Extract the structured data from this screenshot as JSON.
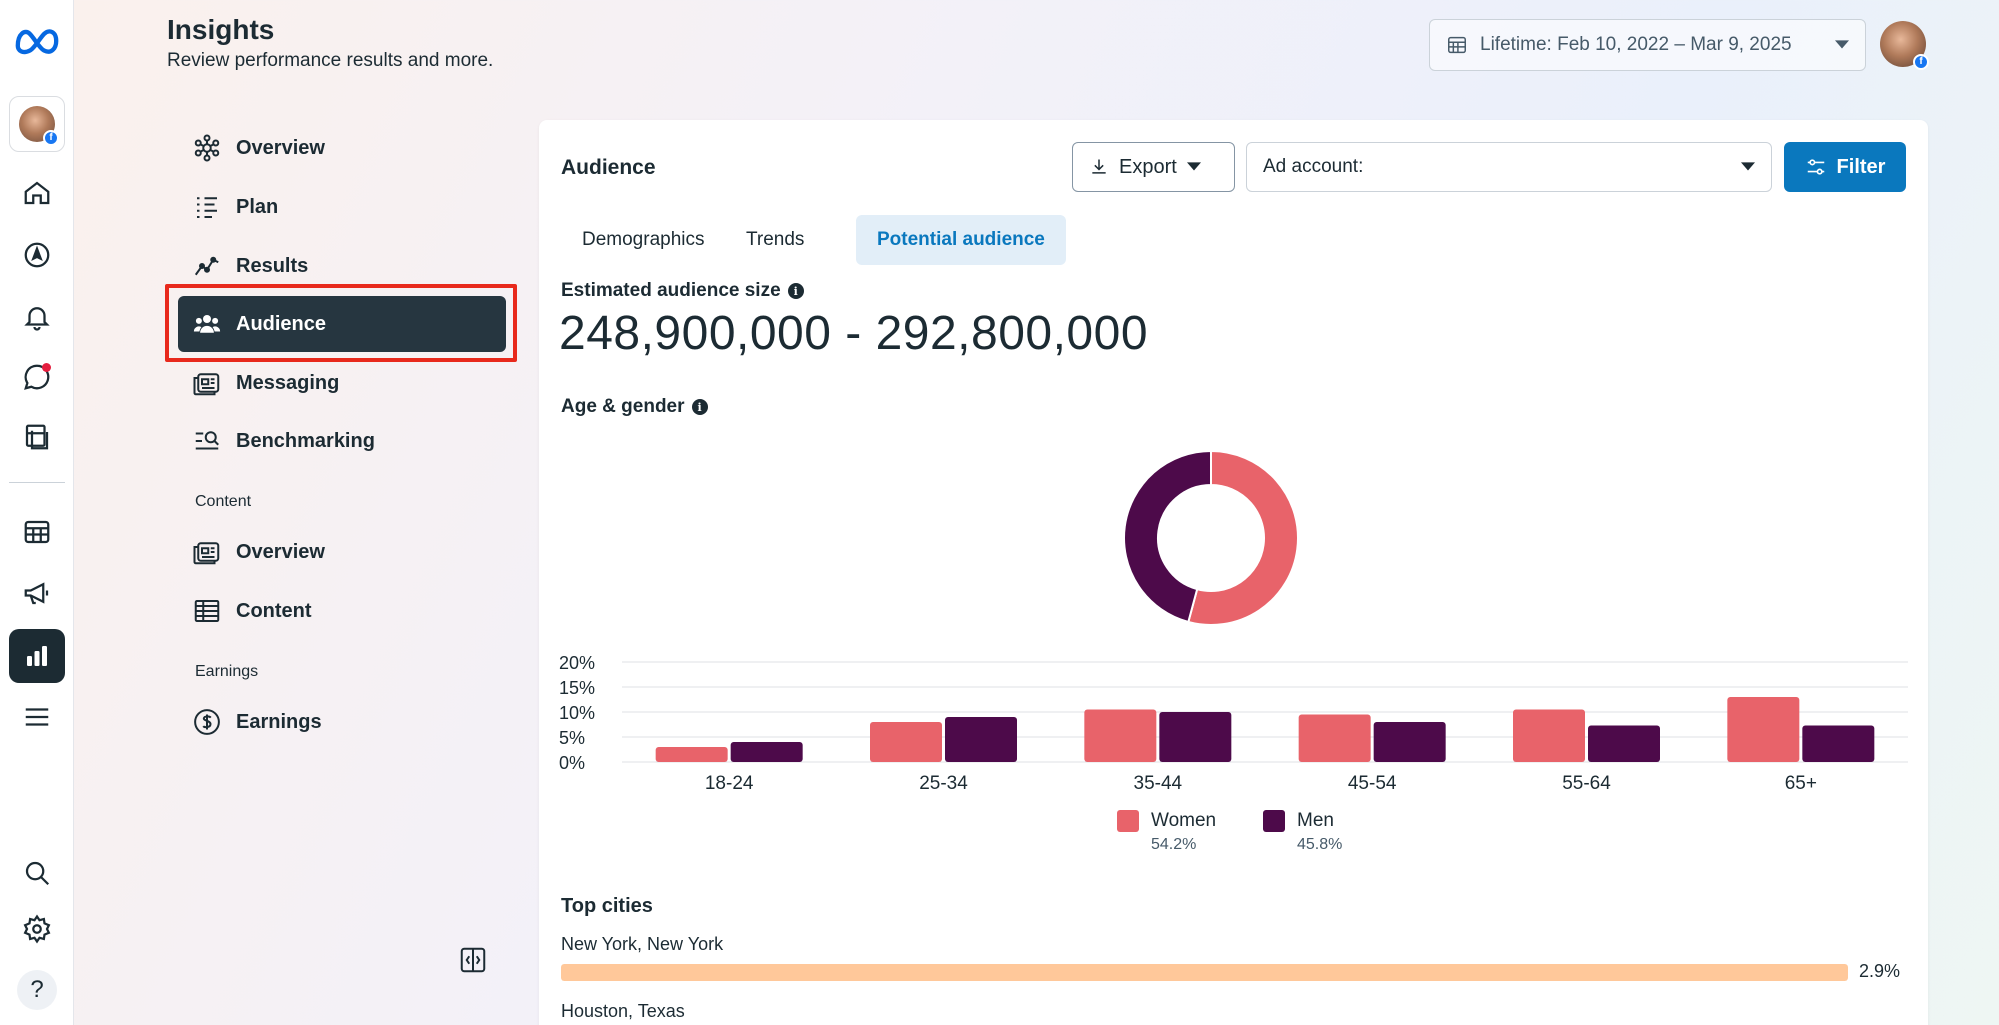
{
  "rail": {
    "logo_icon": "meta-logo-icon",
    "items": [
      "home-icon",
      "compass-icon",
      "bell-icon",
      "chat-icon",
      "pages-icon",
      "table-icon",
      "megaphone-icon",
      "insights-icon",
      "menu-icon",
      "search-icon",
      "gear-icon",
      "help-icon"
    ],
    "active": "insights-icon"
  },
  "header": {
    "title": "Insights",
    "subtitle": "Review performance results and more.",
    "date_range": "Lifetime: Feb 10, 2022 – Mar 9, 2025"
  },
  "nav": {
    "items": [
      {
        "label": "Overview",
        "icon": "overview-icon"
      },
      {
        "label": "Plan",
        "icon": "plan-icon"
      },
      {
        "label": "Results",
        "icon": "results-icon"
      },
      {
        "label": "Audience",
        "icon": "audience-icon",
        "active": true
      },
      {
        "label": "Messaging",
        "icon": "messaging-icon"
      },
      {
        "label": "Benchmarking",
        "icon": "benchmarking-icon"
      }
    ],
    "content_section": "Content",
    "content_items": [
      {
        "label": "Overview",
        "icon": "content-overview-icon"
      },
      {
        "label": "Content",
        "icon": "content-table-icon"
      }
    ],
    "earnings_section": "Earnings",
    "earnings_items": [
      {
        "label": "Earnings",
        "icon": "dollar-icon"
      }
    ]
  },
  "card": {
    "title": "Audience",
    "export_label": "Export",
    "ad_account_label": "Ad account:",
    "filter_label": "Filter",
    "tabs": [
      "Demographics",
      "Trends",
      "Potential audience"
    ],
    "active_tab": "Potential audience",
    "estimated_label": "Estimated audience size",
    "estimated_value": "248,900,000 - 292,800,000",
    "age_gender_label": "Age & gender",
    "top_cities_title": "Top cities",
    "cities": [
      {
        "name": "New York, New York",
        "pct": "2.9%",
        "value": 2.9
      },
      {
        "name": "Houston, Texas",
        "pct": "",
        "value": null
      }
    ],
    "city_bar_color": "#ffc89a"
  },
  "colors": {
    "women": "#e8636a",
    "men": "#4d0a4a",
    "accent": "#0a78be",
    "nav_active": "#263640",
    "highlight": "#e8291c"
  },
  "chart_data": [
    {
      "type": "pie",
      "variant": "donut",
      "categories": [
        "Women",
        "Men"
      ],
      "values": [
        54.2,
        45.8
      ],
      "colors": [
        "#e8636a",
        "#4d0a4a"
      ]
    },
    {
      "type": "bar",
      "categories": [
        "18-24",
        "25-34",
        "35-44",
        "45-54",
        "55-64",
        "65+"
      ],
      "series": [
        {
          "name": "Women",
          "values": [
            3.0,
            8.0,
            10.5,
            9.5,
            10.5,
            13.0
          ],
          "color": "#e8636a"
        },
        {
          "name": "Men",
          "values": [
            4.0,
            9.0,
            10.0,
            8.0,
            7.3,
            7.3
          ],
          "color": "#4d0a4a"
        }
      ],
      "yticks": [
        "0%",
        "5%",
        "10%",
        "15%",
        "20%"
      ],
      "ylim": [
        0,
        20
      ],
      "grid": true,
      "legend": [
        {
          "label": "Women",
          "pct": "54.2%"
        },
        {
          "label": "Men",
          "pct": "45.8%"
        }
      ],
      "legend_position": "bottom-center"
    }
  ]
}
